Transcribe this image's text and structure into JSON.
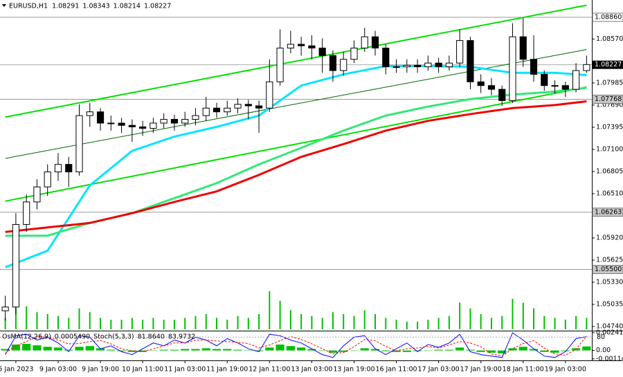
{
  "chart_data": {
    "type": "candlestick",
    "symbol": "EURUSD,H1",
    "header_values": [
      1.08291,
      1.08343,
      1.08214,
      1.08227
    ],
    "categories": [
      null,
      "5 Jan 2023",
      null,
      null,
      null,
      "9 Jan 03:00",
      null,
      null,
      null,
      "9 Jan 19:00",
      null,
      null,
      null,
      "10 Jan 11:00",
      null,
      null,
      null,
      "11 Jan 03:00",
      null,
      null,
      null,
      "11 Jan 19:00",
      null,
      null,
      null,
      "12 Jan 11:00",
      null,
      null,
      null,
      "13 Jan 03:00",
      null,
      null,
      null,
      "13 Jan 19:00",
      null,
      null,
      null,
      "16 Jan 11:00",
      null,
      null,
      null,
      "17 Jan 03:00",
      null,
      null,
      null,
      "17 Jan 19:00",
      null,
      null,
      null,
      "18 Jan 11:00",
      null,
      null,
      null,
      "19 Jan 03:00",
      null,
      null
    ],
    "open": [
      1.0495,
      1.05,
      1.061,
      1.064,
      1.066,
      1.068,
      1.069,
      1.068,
      1.0755,
      1.076,
      1.0745,
      1.0745,
      1.0742,
      1.074,
      1.0738,
      1.0745,
      1.075,
      1.0745,
      1.075,
      1.0755,
      1.0765,
      1.076,
      1.0765,
      1.077,
      1.0768,
      1.0765,
      1.08,
      1.0845,
      1.085,
      1.0848,
      1.0845,
      1.0835,
      1.0815,
      1.083,
      1.0845,
      1.086,
      1.0845,
      1.082,
      1.082,
      1.0822,
      1.082,
      1.0825,
      1.082,
      1.0825,
      1.0855,
      1.08,
      1.0795,
      1.079,
      1.0775,
      1.086,
      1.083,
      1.081,
      1.0795,
      1.0795,
      1.079,
      1.0815
    ],
    "high": [
      1.0515,
      1.0625,
      1.065,
      1.067,
      1.069,
      1.0705,
      1.07,
      1.077,
      1.0772,
      1.0765,
      1.0755,
      1.0752,
      1.075,
      1.0748,
      1.0752,
      1.0758,
      1.0756,
      1.076,
      1.0765,
      1.078,
      1.0772,
      1.0775,
      1.0778,
      1.0776,
      1.0775,
      1.083,
      1.087,
      1.0868,
      1.086,
      1.0862,
      1.0858,
      1.0842,
      1.084,
      1.0855,
      1.0872,
      1.0868,
      1.085,
      1.083,
      1.083,
      1.083,
      1.0835,
      1.0832,
      1.0835,
      1.087,
      1.086,
      1.081,
      1.0805,
      1.0795,
      1.0878,
      1.0885,
      1.0862,
      1.0815,
      1.0802,
      1.08,
      1.0825,
      1.0835
    ],
    "low": [
      1.0482,
      1.049,
      1.06,
      1.063,
      1.0648,
      1.0668,
      1.066,
      1.0675,
      1.074,
      1.0735,
      1.0735,
      1.0732,
      1.072,
      1.0728,
      1.0732,
      1.0738,
      1.0735,
      1.074,
      1.0742,
      1.0748,
      1.0752,
      1.0755,
      1.0758,
      1.075,
      1.0732,
      1.076,
      1.0795,
      1.0838,
      1.0835,
      1.083,
      1.0812,
      1.08,
      1.0808,
      1.0825,
      1.084,
      1.0835,
      1.081,
      1.0812,
      1.0812,
      1.0812,
      1.0815,
      1.0812,
      1.0815,
      1.082,
      1.079,
      1.0785,
      1.0782,
      1.0768,
      1.0772,
      1.082,
      1.08,
      1.0788,
      1.0785,
      1.078,
      1.0786,
      1.0812
    ],
    "close": [
      1.05,
      1.061,
      1.064,
      1.066,
      1.068,
      1.069,
      1.068,
      1.0755,
      1.076,
      1.0745,
      1.0745,
      1.0742,
      1.074,
      1.0738,
      1.0745,
      1.075,
      1.0745,
      1.075,
      1.0755,
      1.0765,
      1.076,
      1.0765,
      1.077,
      1.0768,
      1.0765,
      1.08,
      1.0845,
      1.085,
      1.0848,
      1.0845,
      1.0835,
      1.0815,
      1.083,
      1.0845,
      1.086,
      1.0845,
      1.082,
      1.082,
      1.0822,
      1.082,
      1.0825,
      1.082,
      1.0825,
      1.0855,
      1.08,
      1.0795,
      1.079,
      1.0775,
      1.086,
      1.083,
      1.081,
      1.0795,
      1.0795,
      1.079,
      1.0815,
      1.0823
    ],
    "volume": [
      30,
      95,
      60,
      45,
      40,
      35,
      30,
      55,
      45,
      30,
      25,
      25,
      30,
      25,
      30,
      25,
      25,
      30,
      35,
      40,
      30,
      25,
      35,
      30,
      40,
      100,
      75,
      50,
      40,
      35,
      30,
      45,
      40,
      35,
      50,
      40,
      30,
      25,
      20,
      20,
      25,
      30,
      35,
      70,
      55,
      40,
      30,
      35,
      80,
      70,
      55,
      35,
      30,
      25,
      35,
      30
    ],
    "volume_color": "#00c000",
    "ylim": [
      1.04685,
      1.0909
    ],
    "yticks": [
      {
        "value": 1.0857,
        "label": "1.08570"
      },
      1.07985,
      {
        "value": 1.0769,
        "label": "1.07690"
      },
      1.07395,
      {
        "value": 1.071,
        "label": "1.07100"
      },
      1.06805,
      {
        "value": 1.0651,
        "label": "1.06510"
      },
      {
        "value": 1.0592,
        "label": "1.05920"
      },
      1.05625,
      {
        "value": 1.0533,
        "label": "1.05330"
      },
      1.05035,
      {
        "value": 1.0474,
        "label": "1.04740"
      }
    ],
    "levels": [
      {
        "value": 1.0886,
        "label": "1.08860"
      },
      {
        "value": 1.07768,
        "label": "1.07768"
      },
      {
        "value": 1.06263,
        "label": "1.06263"
      },
      {
        "value": 1.055,
        "label": "1.05500"
      }
    ],
    "last_price": 1.08227,
    "moving_averages": [
      {
        "color": "#00e5ff",
        "x": [
          0,
          4,
          8,
          12,
          16,
          20,
          24,
          28,
          32,
          36,
          40,
          44,
          48,
          52,
          55
        ],
        "values": [
          1.0553,
          1.0575,
          1.0662,
          1.0708,
          1.0727,
          1.074,
          1.0755,
          1.0795,
          1.081,
          1.0821,
          1.0821,
          1.082,
          1.0812,
          1.0812,
          1.0809
        ]
      },
      {
        "color": "#33e877",
        "x": [
          0,
          4,
          8,
          12,
          16,
          20,
          24,
          28,
          32,
          36,
          40,
          44,
          48,
          52,
          55
        ],
        "values": [
          1.0595,
          1.0595,
          1.0612,
          1.0625,
          1.0645,
          1.0665,
          1.069,
          1.0712,
          1.0735,
          1.0755,
          1.0767,
          1.0777,
          1.0783,
          1.0787,
          1.0792
        ]
      },
      {
        "color": "#ee0000",
        "x": [
          0,
          4,
          8,
          12,
          16,
          20,
          24,
          28,
          32,
          36,
          40,
          44,
          48,
          52,
          55
        ],
        "values": [
          1.06,
          1.0606,
          1.0612,
          1.0625,
          1.064,
          1.0654,
          1.0676,
          1.07,
          1.0717,
          1.0735,
          1.0748,
          1.0757,
          1.0765,
          1.0769,
          1.0774
        ]
      }
    ],
    "trendlines": [
      {
        "color": "#00e000",
        "x": [
          0,
          55
        ],
        "values": [
          1.0753,
          1.0902
        ]
      },
      {
        "color": "#006400",
        "x": [
          0,
          55
        ],
        "values": [
          1.0698,
          1.0843
        ]
      },
      {
        "color": "#00e000",
        "x": [
          0,
          55
        ],
        "values": [
          1.0641,
          1.0793
        ]
      }
    ],
    "indicator": {
      "osma_name": "OsMA(12,26,9)",
      "osma_label": {
        "value": 0.000549,
        "label": "0.0005490"
      },
      "stoch_name": "Stoch(5,3,3)",
      "stoch_labels": [
        {
          "value": 81.864,
          "label": "81.8640"
        },
        {
          "value": 83.9732,
          "label": "83.9732"
        }
      ],
      "osma_color": "#00c000",
      "osma_lim": [
        -0.00135,
        0.0026
      ],
      "osma_ticks": [
        0.0024154,
        {
          "value": 0,
          "label": "0.00"
        },
        -0.001149
      ],
      "osma": [
        0.0002,
        0.0008,
        0.0009,
        0.0007,
        0.0005,
        0.0004,
        0.0001,
        0.0005,
        0.0006,
        0.0003,
        0.0001,
        -0.0001,
        -0.0002,
        -0.0002,
        0,
        0.0001,
        0.0001,
        0.0002,
        0.0002,
        0.0003,
        0.0002,
        0.0002,
        0.0001,
        0,
        -0.0001,
        0.0004,
        0.0008,
        0.0006,
        0.0004,
        0.0002,
        0,
        -0.0003,
        -0.0002,
        0,
        0.0003,
        0.0002,
        -0.0001,
        -0.0002,
        -0.0002,
        -0.0001,
        0,
        0.0001,
        0.0001,
        0.0004,
        0.0001,
        -0.0002,
        -0.0003,
        -0.0004,
        0.0003,
        0.0005,
        0.0002,
        -0.0002,
        -0.0003,
        -0.0001,
        0.0003,
        0.000549
      ],
      "stoch_lim": [
        0,
        100
      ],
      "stoch_ticks": [
        80
      ],
      "stoch_main": [
        20,
        85,
        90,
        70,
        80,
        60,
        30,
        85,
        80,
        40,
        50,
        30,
        20,
        40,
        60,
        50,
        70,
        60,
        80,
        70,
        50,
        75,
        60,
        40,
        30,
        90,
        85,
        70,
        60,
        40,
        20,
        10,
        50,
        80,
        85,
        40,
        20,
        40,
        60,
        30,
        55,
        45,
        60,
        90,
        30,
        20,
        15,
        10,
        95,
        70,
        40,
        15,
        10,
        30,
        75,
        81.864
      ],
      "stoch_main_color": "#0000ff",
      "stoch_signal": [
        25,
        50,
        65,
        82,
        80,
        70,
        57,
        58,
        65,
        68,
        57,
        40,
        33,
        30,
        40,
        50,
        60,
        60,
        70,
        70,
        67,
        65,
        62,
        58,
        43,
        53,
        68,
        82,
        72,
        57,
        40,
        23,
        27,
        47,
        72,
        68,
        48,
        33,
        40,
        43,
        48,
        43,
        53,
        65,
        60,
        47,
        22,
        15,
        40,
        58,
        68,
        42,
        22,
        18,
        38,
        83.9732
      ],
      "stoch_signal_color": "#ff0000"
    }
  }
}
